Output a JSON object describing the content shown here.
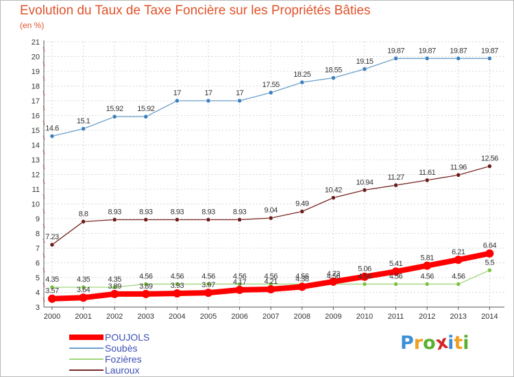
{
  "title": "Evolution du Taux de Taxe Foncière sur les Propriétés Bâties",
  "subtitle": "(en %)",
  "logo": {
    "letters": [
      "P",
      "r",
      "o",
      "x",
      "i",
      "t",
      "i"
    ],
    "colors": [
      "#3c8fd6",
      "#f0a020",
      "#58b030",
      "#d02828",
      "#3c8fd6",
      "#f0a020",
      "#58b030"
    ]
  },
  "chart_data": {
    "type": "line",
    "x": [
      "2000",
      "2001",
      "2002",
      "2003",
      "2004",
      "2005",
      "2006",
      "2007",
      "2008",
      "2009",
      "2010",
      "2011",
      "2012",
      "2013",
      "2014"
    ],
    "ylim": [
      3,
      21
    ],
    "yticks": [
      "3",
      "4",
      "5",
      "6",
      "7",
      "8",
      "9",
      "10",
      "11",
      "12",
      "13",
      "14",
      "15",
      "16",
      "17",
      "18",
      "19",
      "20",
      "21"
    ],
    "grid": "horizontal dashed",
    "legend_position": "bottom-left",
    "series": [
      {
        "name": "POUJOLS",
        "color": "#ff0000",
        "values": [
          3.57,
          3.64,
          3.89,
          3.89,
          3.93,
          3.97,
          4.17,
          4.21,
          4.38,
          4.73,
          5.06,
          5.41,
          5.81,
          6.21,
          6.64
        ],
        "labels": [
          "3.57",
          "3.64",
          "3.89",
          "3.89",
          "3.93",
          "3.97",
          "4.17",
          "4.21",
          "4.38",
          "4.73",
          "5.06",
          "5.41",
          "5.81",
          "6.21",
          "6.64"
        ],
        "thick": true
      },
      {
        "name": "Soubès",
        "color": "#6a9fc9",
        "marker": "#3a7fbf",
        "values": [
          14.6,
          15.1,
          15.92,
          15.92,
          17,
          17,
          17,
          17.55,
          18.25,
          18.55,
          19.15,
          19.87,
          19.87,
          19.87,
          19.87
        ],
        "labels": [
          "14.6",
          "15.1",
          "15.92",
          "15.92",
          "17",
          "17",
          "17",
          "17.55",
          "18.25",
          "18.55",
          "19.15",
          "19.87",
          "19.87",
          "19.87",
          "19.87"
        ]
      },
      {
        "name": "Fozières",
        "color": "#9fd67c",
        "marker": "#7dc242",
        "values": [
          4.35,
          4.35,
          4.35,
          4.56,
          4.56,
          4.56,
          4.56,
          4.56,
          4.56,
          4.56,
          4.56,
          4.56,
          4.56,
          4.56,
          5.5
        ],
        "labels": [
          "4.35",
          "4.35",
          "4.35",
          "4.56",
          "4.56",
          "4.56",
          "4.56",
          "4.56",
          "4.56",
          "4.56",
          "4.56",
          "4.56",
          "4.56",
          "4.56",
          "5.5"
        ]
      },
      {
        "name": "Lauroux",
        "color": "#7a2626",
        "marker": "#6b1c1c",
        "values": [
          7.23,
          8.8,
          8.93,
          8.93,
          8.93,
          8.93,
          8.93,
          9.04,
          9.49,
          10.42,
          10.94,
          11.27,
          11.61,
          11.96,
          12.56
        ],
        "labels": [
          "7.23",
          "8.8",
          "8.93",
          "8.93",
          "8.93",
          "8.93",
          "8.93",
          "9.04",
          "9.49",
          "10.42",
          "10.94",
          "11.27",
          "11.61",
          "11.96",
          "12.56"
        ]
      }
    ]
  }
}
